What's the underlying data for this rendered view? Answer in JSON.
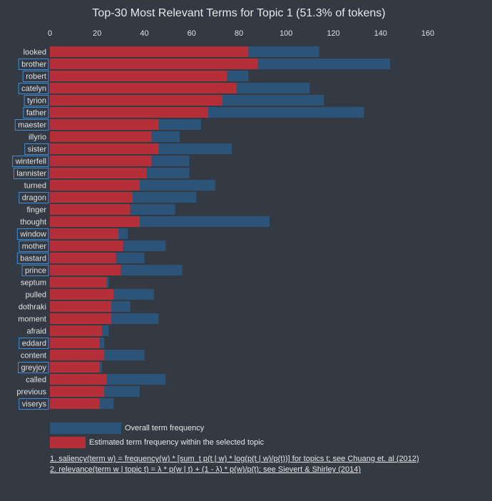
{
  "chart_data": {
    "type": "bar",
    "title": "Top-30 Most Relevant Terms for Topic 1 (51.3% of tokens)",
    "xlim": [
      0,
      160
    ],
    "xticks": [
      0,
      20,
      40,
      60,
      80,
      100,
      120,
      140,
      160
    ],
    "categories": [
      "looked",
      "brother",
      "robert",
      "catelyn",
      "tyrion",
      "father",
      "maester",
      "illyrio",
      "sister",
      "winterfell",
      "lannister",
      "turned",
      "dragon",
      "finger",
      "thought",
      "window",
      "mother",
      "bastard",
      "prince",
      "septum",
      "pulled",
      "dothraki",
      "moment",
      "afraid",
      "eddard",
      "content",
      "greyjoy",
      "called",
      "previous",
      "viserys"
    ],
    "boxed_terms": [
      "brother",
      "robert",
      "catelyn",
      "tyrion",
      "father",
      "maester",
      "sister",
      "winterfell",
      "lannister",
      "dragon",
      "window",
      "mother",
      "bastard",
      "prince",
      "eddard",
      "greyjoy",
      "viserys"
    ],
    "series": [
      {
        "name": "Overall term frequency",
        "color": "#2b5478",
        "values": [
          114,
          144,
          84,
          110,
          116,
          133,
          64,
          55,
          77,
          59,
          59,
          70,
          62,
          53,
          93,
          33,
          49,
          40,
          56,
          25,
          44,
          34,
          46,
          25,
          23,
          40,
          22,
          49,
          38,
          27
        ]
      },
      {
        "name": "Estimated term frequency within the selected topic",
        "color": "#b42f37",
        "values": [
          84,
          88,
          75,
          79,
          73,
          67,
          46,
          43,
          46,
          43,
          41,
          38,
          35,
          34,
          38,
          29,
          31,
          28,
          30,
          24,
          27,
          26,
          26,
          22,
          21,
          23,
          21,
          24,
          23,
          21
        ]
      }
    ]
  },
  "legend": {
    "overall_label": "Overall term frequency",
    "topic_label": "Estimated term frequency within the selected topic"
  },
  "footnotes": {
    "saliency": "1. saliency(term w) = frequency(w) * [sum_t p(t | w) * log(p(t | w)/p(t))] for topics t; see Chuang et. al (2012)",
    "relevance": "2. relevance(term w | topic t) = λ * p(w | t) + (1 - λ) * p(w)/p(t); see Sievert & Shirley (2014)"
  }
}
